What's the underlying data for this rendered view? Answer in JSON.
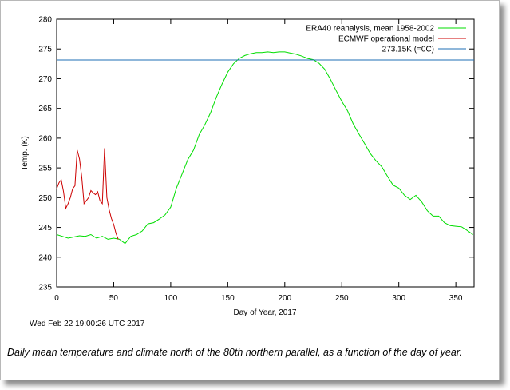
{
  "timestamp": "Wed Feb 22 19:00:26 UTC 2017",
  "caption": "Daily mean temperature and climate north of the 80th northern parallel, as a function of the day of year.",
  "colors": {
    "climate": "#00dd00",
    "operational": "#cc0000",
    "freezing": "#1f6fb5"
  },
  "chart_data": {
    "type": "line",
    "xlabel": "Day of Year, 2017",
    "ylabel": "Temp. (K)",
    "xlim": [
      0,
      366
    ],
    "ylim": [
      235,
      280
    ],
    "xticks": [
      0,
      50,
      100,
      150,
      200,
      250,
      300,
      350
    ],
    "yticks": [
      235,
      240,
      245,
      250,
      255,
      260,
      265,
      270,
      275,
      280
    ],
    "grid": false,
    "legend_position": "top-right",
    "series": [
      {
        "name": "ERA40 reanalysis, mean 1958-2002",
        "color": "#00dd00",
        "x": [
          0,
          5,
          10,
          15,
          20,
          25,
          30,
          35,
          40,
          45,
          50,
          55,
          60,
          65,
          70,
          75,
          80,
          85,
          90,
          95,
          100,
          105,
          110,
          115,
          120,
          125,
          130,
          135,
          140,
          145,
          150,
          155,
          160,
          165,
          170,
          175,
          180,
          185,
          190,
          195,
          200,
          205,
          210,
          215,
          220,
          225,
          230,
          235,
          240,
          245,
          250,
          255,
          260,
          265,
          270,
          275,
          280,
          285,
          290,
          295,
          300,
          305,
          310,
          315,
          320,
          325,
          330,
          335,
          340,
          345,
          350,
          355,
          360,
          365
        ],
        "y": [
          243.8,
          243.5,
          243.2,
          243.4,
          243.6,
          243.5,
          243.8,
          243.2,
          243.5,
          243.0,
          243.2,
          243.0,
          242.3,
          243.5,
          243.8,
          244.4,
          245.6,
          245.8,
          246.4,
          247.1,
          248.4,
          251.6,
          254.0,
          256.4,
          258.0,
          260.6,
          262.3,
          264.3,
          266.9,
          269.1,
          271.1,
          272.5,
          273.4,
          273.9,
          274.2,
          274.4,
          274.4,
          274.5,
          274.4,
          274.5,
          274.5,
          274.3,
          274.1,
          273.8,
          273.4,
          273.2,
          272.6,
          271.6,
          269.9,
          268.0,
          266.2,
          264.6,
          262.4,
          260.7,
          259.1,
          257.4,
          256.2,
          255.2,
          253.6,
          252.1,
          251.6,
          250.4,
          249.7,
          250.4,
          249.3,
          247.8,
          246.9,
          246.9,
          245.8,
          245.3,
          245.2,
          245.1,
          244.5,
          243.8
        ]
      },
      {
        "name": "ECMWF operational model",
        "color": "#cc0000",
        "x": [
          0,
          2,
          4,
          6,
          8,
          10,
          12,
          14,
          16,
          18,
          20,
          22,
          24,
          26,
          28,
          30,
          32,
          34,
          36,
          38,
          40,
          42,
          44,
          46,
          48,
          50,
          52,
          54
        ],
        "y": [
          251.5,
          252.5,
          253.0,
          251.0,
          248.2,
          249.0,
          250.0,
          251.5,
          252.0,
          258.0,
          256.5,
          253.5,
          249.0,
          249.5,
          250.0,
          251.2,
          250.8,
          250.5,
          251.0,
          249.5,
          249.0,
          258.3,
          250.0,
          248.0,
          246.5,
          245.5,
          244.0,
          243.0
        ]
      },
      {
        "name": "273.15K (=0C)",
        "color": "#1f6fb5",
        "x": [
          0,
          366
        ],
        "y": [
          273.15,
          273.15
        ]
      }
    ]
  }
}
